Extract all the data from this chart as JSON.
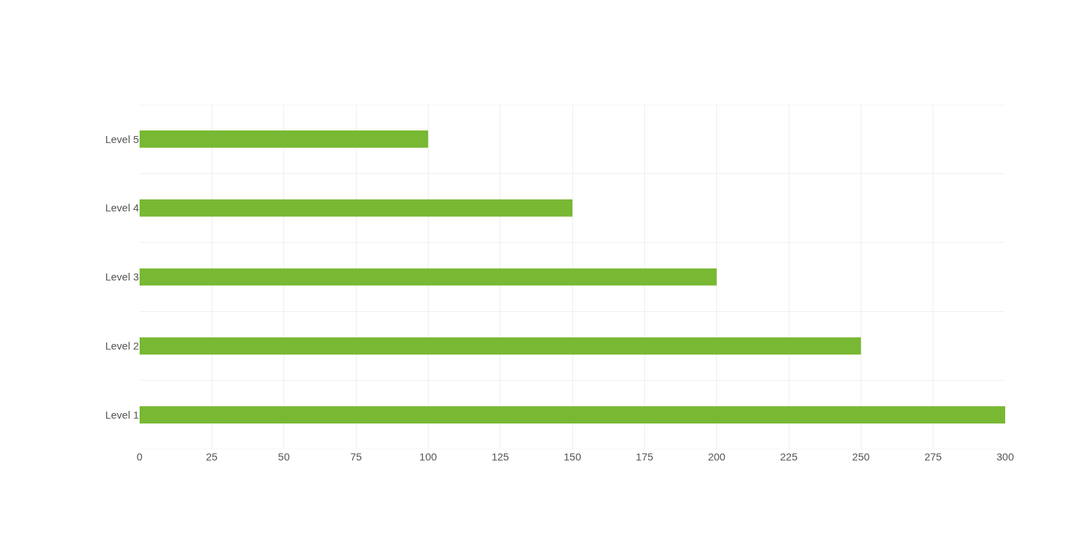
{
  "chart_data": {
    "type": "bar",
    "orientation": "horizontal",
    "categories": [
      "Level 5",
      "Level 4",
      "Level 3",
      "Level 2",
      "Level 1"
    ],
    "values": [
      100,
      150,
      200,
      250,
      300
    ],
    "color": "#78b833",
    "xlim": [
      0,
      300
    ],
    "xticks": [
      0,
      25,
      50,
      75,
      100,
      125,
      150,
      175,
      200,
      225,
      250,
      275,
      300
    ],
    "grid": true
  }
}
